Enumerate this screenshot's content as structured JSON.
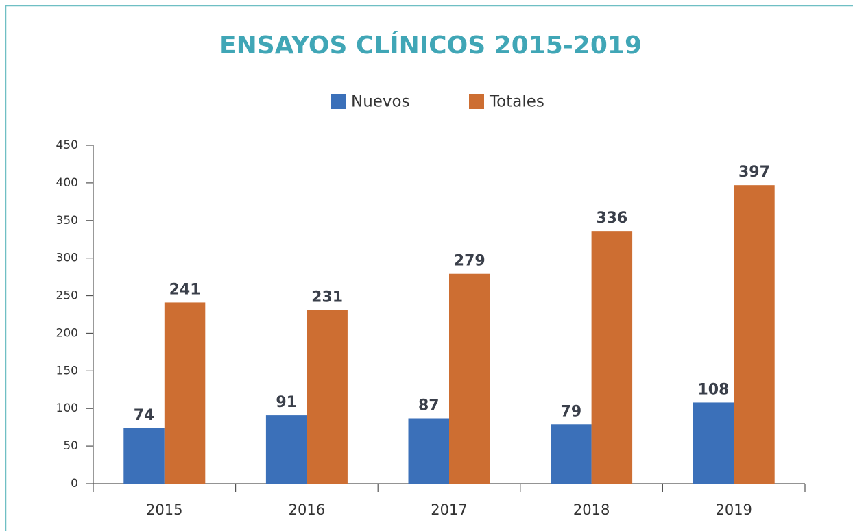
{
  "chart_data": {
    "type": "bar",
    "title": "ENSAYOS CLÍNICOS 2015-2019",
    "categories": [
      "2015",
      "2016",
      "2017",
      "2018",
      "2019"
    ],
    "series": [
      {
        "name": "Nuevos",
        "color": "#3b70b9",
        "values": [
          74,
          91,
          87,
          79,
          108
        ]
      },
      {
        "name": "Totales",
        "color": "#cd6e32",
        "values": [
          241,
          231,
          279,
          336,
          397
        ]
      }
    ],
    "ylim": [
      0,
      450
    ],
    "yticks": [
      0,
      50,
      100,
      150,
      200,
      250,
      300,
      350,
      400,
      450
    ],
    "legend": "top",
    "grid": false
  }
}
